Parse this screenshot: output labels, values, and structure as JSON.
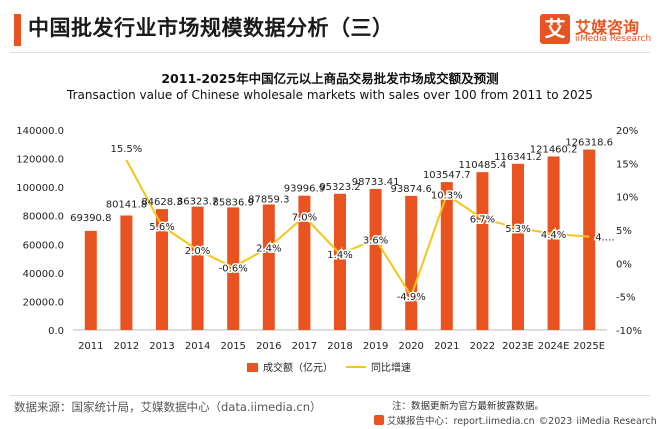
{
  "header": {
    "title": "中国批发行业市场规模数据分析（三）",
    "logo_mark": "艾",
    "logo_cn": "艾媒咨询",
    "logo_en": "iiMedia Research"
  },
  "chart_data": {
    "type": "bar+line",
    "title_cn": "2011-2025年中国亿元以上商品交易批发市场成交额及预测",
    "title_en": "Transaction value of Chinese wholesale markets with sales over 100 from 2011 to 2025",
    "categories": [
      "2011",
      "2012",
      "2013",
      "2014",
      "2015",
      "2016",
      "2017",
      "2018",
      "2019",
      "2020",
      "2021",
      "2022",
      "2023E",
      "2024E",
      "2025E"
    ],
    "series": [
      {
        "name": "成交额（亿元）",
        "type": "bar",
        "axis": "left",
        "color": "#e8531f",
        "values": [
          69390.8,
          80141.8,
          84628.3,
          86323.7,
          85836.9,
          87859.3,
          93996.9,
          95323.2,
          98733.41,
          93874.6,
          103547.7,
          110485.4,
          116341.2,
          121460.2,
          126318.6
        ],
        "labels": [
          "69390.8",
          "80141.8",
          "84628.3",
          "86323.7",
          "85836.9",
          "87859.3",
          "93996.9",
          "95323.2",
          "98733.41",
          "93874.6",
          "103547.7",
          "110485.4",
          "116341.2",
          "121460.2",
          "126318.6"
        ]
      },
      {
        "name": "同比增速",
        "type": "line",
        "axis": "right",
        "color": "#f5c518",
        "values": [
          null,
          15.5,
          5.6,
          2.0,
          -0.6,
          2.4,
          7.0,
          1.4,
          3.6,
          -4.9,
          10.3,
          6.7,
          5.3,
          4.4,
          4.0
        ],
        "labels": [
          "",
          "15.5%",
          "5.6%",
          "2.0%",
          "-0.6%",
          "2.4%",
          "7.0%",
          "1.4%",
          "3.6%",
          "-4.9%",
          "10.3%",
          "6.7%",
          "5.3%",
          "4.4%",
          "4.…"
        ]
      }
    ],
    "y_left": {
      "range": [
        0,
        140000
      ],
      "ticks": [
        "0.0",
        "20000.0",
        "40000.0",
        "60000.0",
        "80000.0",
        "100000.0",
        "120000.0",
        "140000.0"
      ]
    },
    "y_right": {
      "range": [
        -10,
        20
      ],
      "ticks": [
        "-10%",
        "-5%",
        "0%",
        "5%",
        "10%",
        "15%",
        "20%"
      ]
    },
    "grid": false,
    "legend_position": "bottom-center"
  },
  "footer": {
    "source": "数据来源：国家统计局，艾媒数据中心（data.iimedia.cn）",
    "note": "注：数据更新为官方最新披露数据。",
    "report_site": "艾媒报告中心：report.iimedia.cn",
    "copyright": "©2023",
    "company": "iiMedia Research Inc"
  }
}
